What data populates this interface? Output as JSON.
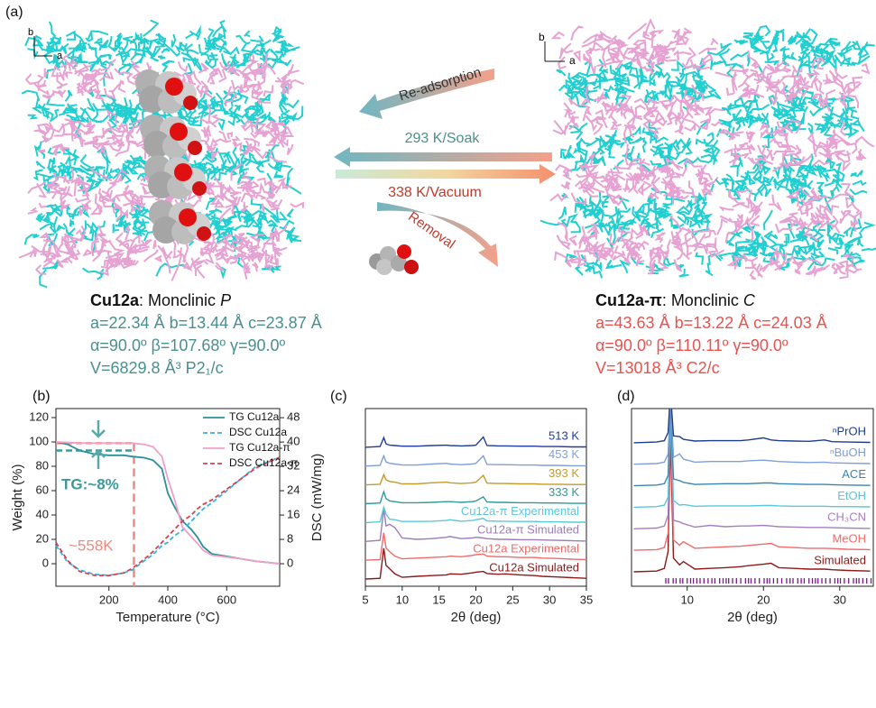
{
  "panel_a": {
    "label": "(a)",
    "axis_b": "b",
    "axis_a": "a",
    "arrow_readsorption": "Re-adsorption",
    "arrow_soak": "293 K/Soak",
    "arrow_vacuum": "338 K/Vacuum",
    "arrow_removal": "Removal",
    "left": {
      "name": "Cu12a",
      "system": ": Monclinic ",
      "lattice": "P",
      "lines": [
        "a=22.34 Å b=13.44 Å c=23.87 Å",
        "α=90.0º β=107.68º γ=90.0º",
        "V=6829.8 Å³ P2₁/c"
      ]
    },
    "right": {
      "name": "Cu12a-π",
      "system": ": Monclinic ",
      "lattice": "C",
      "lines": [
        "a=43.63 Å b=13.22 Å c=24.03 Å",
        "α=90.0º β=110.11º γ=90.0º",
        "V=13018 Å³ C2/c"
      ]
    }
  },
  "chart_data": [
    {
      "type": "line",
      "label": "(b)",
      "xlabel": "Temperature (°C)",
      "ylabel": "Weight (%)",
      "y2label": "DSC (mW/mg)",
      "x": [
        20,
        60,
        100,
        150,
        200,
        250,
        280,
        320,
        350,
        380,
        400,
        420,
        450,
        480,
        500,
        520,
        550,
        600,
        650,
        700,
        780
      ],
      "xlim": [
        20,
        780
      ],
      "xticks": [
        200,
        400,
        600
      ],
      "ylim": [
        -18.5,
        127.4
      ],
      "yticks": [
        0,
        20,
        40,
        60,
        80,
        100,
        120
      ],
      "y2lim": [
        -7.4,
        51
      ],
      "y2ticks": [
        0,
        8,
        16,
        24,
        32,
        40,
        48
      ],
      "legend": "upper right",
      "series": [
        {
          "name": "TG Cu12a",
          "color": "#2a8f9a",
          "dashed": false,
          "values": [
            100,
            98,
            93,
            90,
            89,
            89,
            88,
            87,
            85,
            78,
            58,
            48,
            35,
            28,
            22,
            14,
            8,
            6,
            4,
            2,
            0
          ]
        },
        {
          "name": "DSC Cu12a",
          "color": "#33b5e0",
          "dashed": true,
          "axis": "y2",
          "values": [
            6,
            0.5,
            -2,
            -3.5,
            -3.8,
            -3,
            -2,
            1,
            3,
            6,
            7,
            9,
            11,
            14,
            16,
            18,
            20,
            24,
            28,
            32,
            35
          ]
        },
        {
          "name": "TG Cu12a-π",
          "color": "#f0a0c8",
          "dashed": false,
          "values": [
            100,
            99.5,
            99,
            99,
            99,
            99,
            99,
            98,
            96,
            88,
            70,
            55,
            30,
            22,
            17,
            11,
            7,
            5.5,
            4,
            2,
            0
          ]
        },
        {
          "name": "DSC Cu12a-π",
          "color": "#d9404f",
          "dashed": true,
          "axis": "y2",
          "values": [
            7,
            1,
            -2.5,
            -3.8,
            -3.9,
            -3,
            -1.5,
            1.5,
            4,
            7,
            9,
            11,
            14,
            16,
            18,
            19.5,
            21,
            24.5,
            28,
            31.5,
            35
          ]
        }
      ],
      "reference_lines": {
        "x": 285,
        "y": [
          99,
          93
        ],
        "colors": [
          "#f08a80",
          "#3a9a9a"
        ]
      },
      "annotations": [
        {
          "text": "TG:~8%",
          "color": "#3a9a9a"
        },
        {
          "text": "~558K",
          "color": "#f08a80"
        }
      ]
    },
    {
      "type": "stacked_line",
      "label": "(c)",
      "xlabel": "2θ (deg)",
      "x": [
        5,
        7,
        7.5,
        7.8,
        8.3,
        9,
        10,
        12,
        14,
        16,
        16.5,
        18,
        19.5,
        20,
        21,
        21.5,
        23,
        24,
        26,
        28,
        29,
        31,
        33,
        35
      ],
      "xlim": [
        5,
        35
      ],
      "xticks": [
        5,
        10,
        15,
        20,
        25,
        30,
        35
      ],
      "series": [
        {
          "name": "Cu12a Simulated",
          "color": "#8b1a1a",
          "values": [
            0,
            2,
            90,
            40,
            30,
            15,
            5,
            8,
            10,
            12,
            15,
            14,
            18,
            20,
            22,
            16,
            14,
            15,
            12,
            10,
            8,
            6,
            4,
            2
          ]
        },
        {
          "name": "Cu12a Experimental",
          "color": "#f06a6a",
          "values": [
            0,
            2,
            80,
            35,
            25,
            12,
            4,
            6,
            8,
            10,
            12,
            10,
            14,
            16,
            18,
            12,
            10,
            10,
            8,
            8,
            6,
            5,
            3,
            2
          ]
        },
        {
          "name": "Cu12a-π Simulated",
          "color": "#9b7db8",
          "values": [
            0,
            3,
            95,
            45,
            50,
            40,
            10,
            6,
            8,
            12,
            14,
            8,
            10,
            12,
            10,
            8,
            6,
            6,
            5,
            5,
            4,
            3,
            2,
            1
          ]
        },
        {
          "name": "Cu12a-π Experimental",
          "color": "#5bc7dc",
          "values": [
            0,
            2,
            45,
            25,
            10,
            8,
            3,
            3,
            4,
            6,
            8,
            4,
            6,
            8,
            12,
            5,
            4,
            4,
            3,
            3,
            2,
            2,
            1,
            1
          ]
        },
        {
          "name": "333 K",
          "color": "#2e9a9a",
          "values": [
            0,
            2,
            35,
            15,
            8,
            6,
            3,
            3,
            4,
            6,
            6,
            4,
            6,
            8,
            20,
            5,
            4,
            4,
            3,
            3,
            2,
            2,
            1,
            1
          ]
        },
        {
          "name": "393 K",
          "color": "#c49a2a",
          "values": [
            0,
            2,
            30,
            15,
            10,
            8,
            3,
            3,
            6,
            8,
            6,
            4,
            6,
            8,
            28,
            5,
            4,
            4,
            3,
            3,
            2,
            2,
            1,
            1
          ]
        },
        {
          "name": "453 K",
          "color": "#7f9fd6",
          "values": [
            0,
            2,
            30,
            12,
            8,
            6,
            3,
            3,
            6,
            8,
            6,
            4,
            6,
            8,
            30,
            5,
            4,
            4,
            3,
            3,
            2,
            2,
            1,
            1
          ]
        },
        {
          "name": "513 K",
          "color": "#1f3c9c",
          "values": [
            0,
            2,
            28,
            10,
            6,
            5,
            3,
            3,
            5,
            6,
            5,
            4,
            5,
            6,
            30,
            5,
            4,
            4,
            3,
            3,
            2,
            2,
            1,
            1
          ]
        }
      ]
    },
    {
      "type": "stacked_line",
      "label": "(d)",
      "xlabel": "2θ (deg)",
      "x": [
        3,
        6,
        7,
        7.5,
        7.8,
        8.2,
        9,
        9.5,
        11,
        13,
        15,
        17,
        18,
        20,
        21,
        22,
        24,
        26,
        28,
        29,
        31,
        34
      ],
      "xlim": [
        2.7,
        34.4
      ],
      "xticks": [
        10,
        20,
        30
      ],
      "series": [
        {
          "name": "Simulated",
          "color": "#8b1a1a",
          "values": [
            0,
            2,
            10,
            60,
            400,
            40,
            20,
            30,
            8,
            10,
            12,
            15,
            18,
            22,
            25,
            12,
            10,
            8,
            8,
            6,
            4,
            2
          ]
        },
        {
          "name": "MeOH",
          "color": "#f06a6a",
          "values": [
            0,
            2,
            8,
            50,
            400,
            30,
            15,
            25,
            6,
            8,
            10,
            12,
            14,
            18,
            20,
            10,
            8,
            6,
            6,
            5,
            3,
            2
          ]
        },
        {
          "name": "CH₃CN",
          "color": "#a77fc0",
          "values": [
            0,
            2,
            8,
            40,
            400,
            25,
            20,
            15,
            5,
            10,
            6,
            8,
            8,
            10,
            8,
            6,
            5,
            4,
            4,
            3,
            2,
            1
          ]
        },
        {
          "name": "EtOH",
          "color": "#5bc7dc",
          "values": [
            0,
            2,
            6,
            30,
            300,
            20,
            6,
            8,
            3,
            4,
            4,
            4,
            4,
            5,
            5,
            4,
            3,
            3,
            3,
            2,
            2,
            1
          ]
        },
        {
          "name": "ACE",
          "color": "#3a86b0",
          "values": [
            0,
            2,
            6,
            30,
            250,
            20,
            15,
            10,
            4,
            5,
            6,
            6,
            6,
            8,
            8,
            6,
            5,
            4,
            4,
            3,
            2,
            1
          ]
        },
        {
          "name": "ⁿBuOH",
          "color": "#7f9fd6",
          "values": [
            0,
            2,
            6,
            30,
            200,
            20,
            30,
            15,
            6,
            8,
            8,
            8,
            10,
            12,
            10,
            8,
            6,
            5,
            6,
            4,
            3,
            2
          ]
        },
        {
          "name": "ⁿPrOH",
          "color": "#1f3c8c",
          "values": [
            0,
            2,
            6,
            30,
            150,
            20,
            18,
            10,
            5,
            6,
            6,
            6,
            8,
            14,
            8,
            6,
            5,
            4,
            8,
            3,
            2,
            1
          ]
        }
      ]
    }
  ]
}
